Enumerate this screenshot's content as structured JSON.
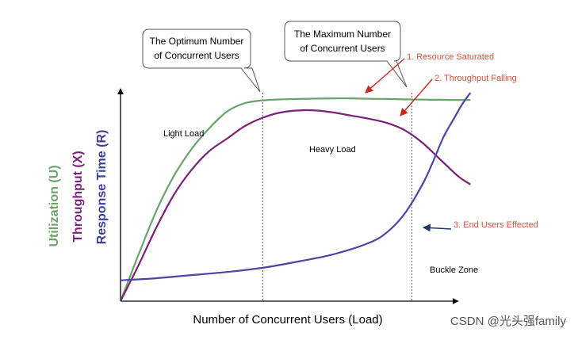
{
  "chart_data": {
    "type": "line",
    "xlabel": "Number of  Concurrent Users (Load)",
    "ylabels": [
      {
        "text": "Utilization (U)",
        "color": "#6aa36a"
      },
      {
        "text": "Throughput (X)",
        "color": "#7a1f7a"
      },
      {
        "text": "Response Time (R)",
        "color": "#3d3d9c"
      }
    ],
    "xlim": [
      0,
      100
    ],
    "ylim": [
      0,
      100
    ],
    "series": [
      {
        "key": "utilization",
        "color": "#6aa36a",
        "x": [
          0,
          5,
          10,
          15,
          20,
          25,
          30,
          35,
          40,
          45,
          50,
          55,
          60,
          65,
          70,
          75,
          80,
          85,
          90,
          95,
          98.5
        ],
        "y": [
          0,
          22,
          43,
          60,
          73,
          83,
          91,
          95,
          96.3,
          96.8,
          97,
          97.2,
          97.3,
          97.3,
          97.1,
          97.0,
          96.8,
          96.7,
          96.6,
          96.5,
          96.5
        ]
      },
      {
        "key": "throughput",
        "color": "#7a1f7a",
        "x": [
          0,
          5,
          10,
          15,
          20,
          25,
          30,
          35,
          40,
          45,
          50,
          55,
          60,
          65,
          70,
          75,
          80,
          85,
          90,
          95,
          98.5
        ],
        "y": [
          0,
          17,
          35,
          51,
          63,
          72,
          78,
          84,
          88,
          90.5,
          91.5,
          91.5,
          90.5,
          89,
          87.5,
          85.5,
          82,
          76,
          68,
          60,
          56
        ]
      },
      {
        "key": "response-time",
        "color": "#4a46a8",
        "x": [
          0,
          10,
          20,
          30,
          40,
          50,
          60,
          70,
          75,
          80,
          85,
          88,
          91,
          94,
          96,
          98.5
        ],
        "y": [
          10,
          11,
          12.5,
          14,
          16,
          19,
          22.5,
          28,
          33,
          42,
          56,
          67,
          79,
          88,
          94,
          100
        ]
      }
    ],
    "reference_lines": [
      {
        "key": "optimum",
        "x": 40
      },
      {
        "key": "maximum",
        "x": 82
      }
    ],
    "callouts": [
      {
        "key": "optimum",
        "lines": [
          "The Optimum Number",
          "of Concurrent Users"
        ]
      },
      {
        "key": "maximum",
        "lines": [
          "The  Maximum  Number",
          "of Concurrent Users"
        ]
      }
    ],
    "annotations": [
      {
        "key": "resource-saturated",
        "text": "1. Resource Saturated",
        "color": "#d9523b"
      },
      {
        "key": "throughput-falling",
        "text": "2. Throughput Falling",
        "color": "#d9523b"
      },
      {
        "key": "end-users-effected",
        "text": "3. End Users Effected",
        "color": "#d9523b"
      }
    ],
    "zones": [
      {
        "key": "light-load",
        "text": "Light Load"
      },
      {
        "key": "heavy-load",
        "text": "Heavy Load"
      },
      {
        "key": "buckle-zone",
        "text": "Buckle Zone"
      }
    ]
  },
  "watermark": "CSDN @光头强family"
}
